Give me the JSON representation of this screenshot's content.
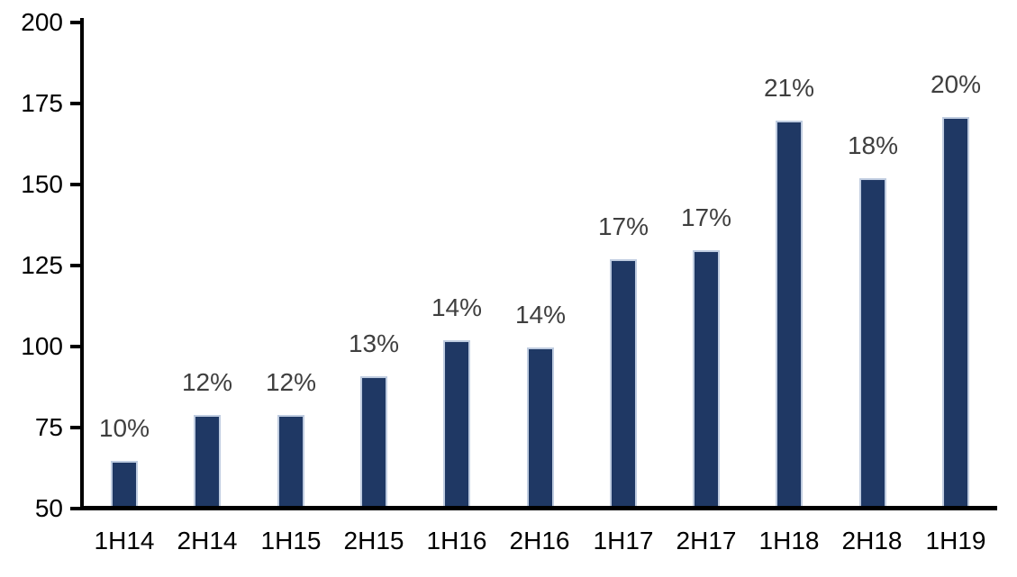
{
  "chart_data": {
    "type": "bar",
    "title": "",
    "xlabel": "",
    "ylabel": "",
    "categories": [
      "1H14",
      "2H14",
      "1H15",
      "2H15",
      "1H16",
      "2H16",
      "1H17",
      "2H17",
      "1H18",
      "2H18",
      "1H19"
    ],
    "values": [
      64,
      78,
      78,
      90,
      101,
      99,
      126,
      129,
      169,
      151,
      170
    ],
    "bar_labels": [
      "10%",
      "12%",
      "12%",
      "13%",
      "14%",
      "14%",
      "17%",
      "17%",
      "21%",
      "18%",
      "20%"
    ],
    "ylim": [
      50,
      200
    ],
    "yticks": [
      50,
      75,
      100,
      125,
      150,
      175,
      200
    ],
    "grid": false,
    "legend": false,
    "colors": {
      "bar_fill": "#1F3864",
      "bar_border": "#BFCCE0",
      "axis": "#000000",
      "bar_label_text": "#3F3F3F",
      "tick_label_text": "#000000",
      "background": "#FFFFFF"
    }
  }
}
